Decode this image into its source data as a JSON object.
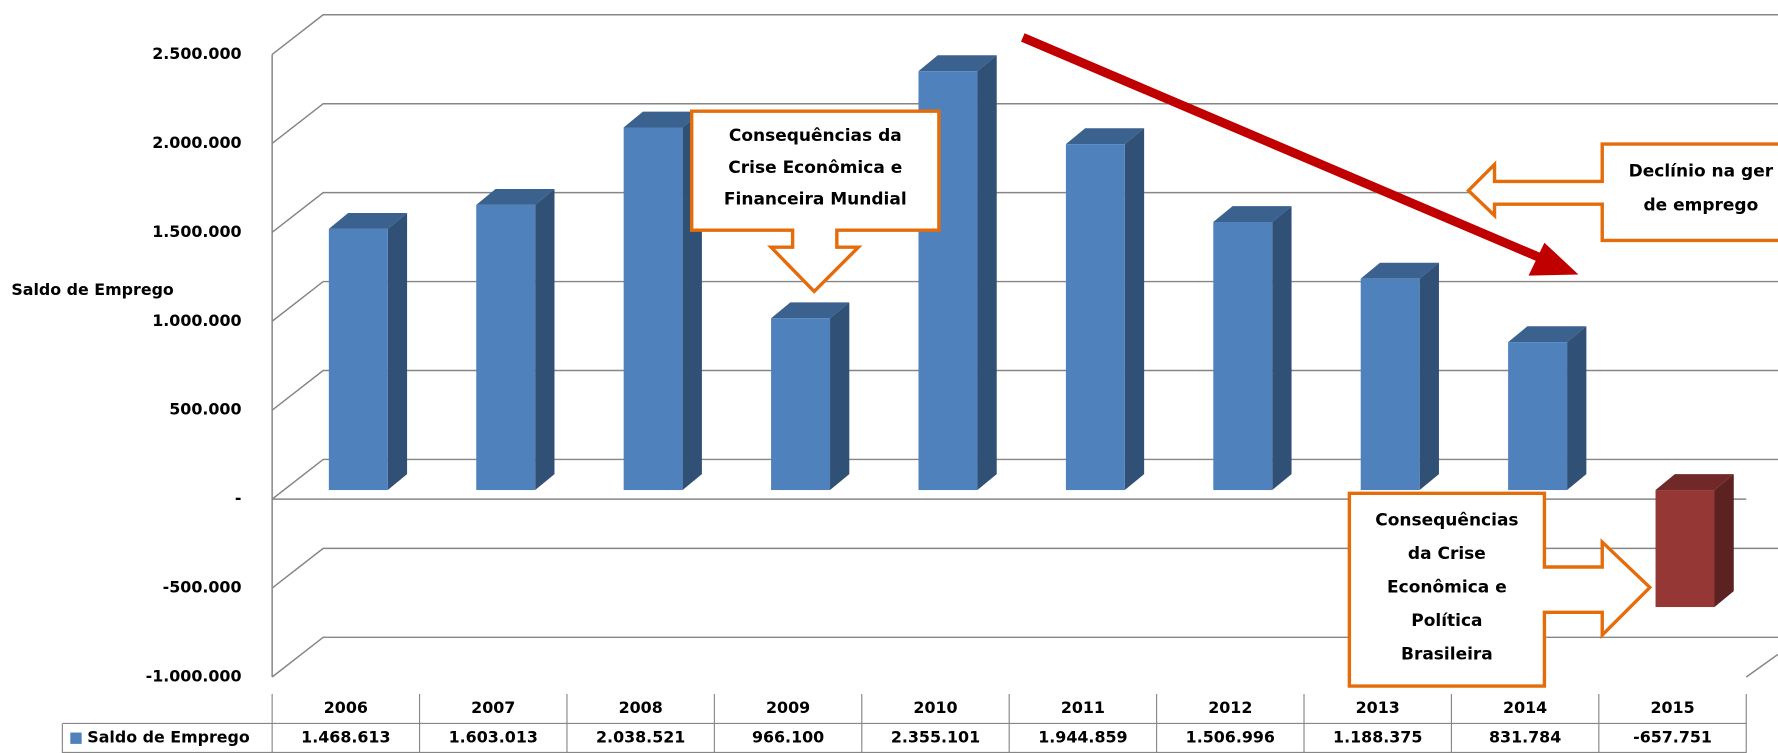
{
  "chart_data": {
    "type": "bar",
    "y_axis_label": "Saldo de Emprego",
    "categories": [
      "2006",
      "2007",
      "2008",
      "2009",
      "2010",
      "2011",
      "2012",
      "2013",
      "2014",
      "2015"
    ],
    "series": [
      {
        "name": "Saldo de Emprego",
        "color": "#4f81bd",
        "negative_color": "#953735",
        "values": [
          1468613,
          1603013,
          2038521,
          966100,
          2355101,
          1944859,
          1506996,
          1188375,
          831784,
          -657751
        ],
        "value_labels": [
          "1.468.613",
          "1.603.013",
          "2.038.521",
          "966.100",
          "2.355.101",
          "1.944.859",
          "1.506.996",
          "1.188.375",
          "831.784",
          "-657.751"
        ]
      }
    ],
    "ylim": [
      -1000000,
      2500000
    ],
    "yticks": [
      {
        "value": -1000000,
        "label": "-1.000.000"
      },
      {
        "value": -500000,
        "label": "-500.000"
      },
      {
        "value": 0,
        "label": "-"
      },
      {
        "value": 500000,
        "label": "500.000"
      },
      {
        "value": 1000000,
        "label": "1.000.000"
      },
      {
        "value": 1500000,
        "label": "1.500.000"
      },
      {
        "value": 2000000,
        "label": "2.000.000"
      },
      {
        "value": 2500000,
        "label": "2.500.000"
      }
    ],
    "grid": true,
    "data_table": true,
    "annotations": [
      {
        "lines": [
          "Consequências da",
          "Crise Econômica e",
          "Financeira Mundial"
        ]
      },
      {
        "lines": [
          "Declínio na ger",
          "de emprego"
        ]
      },
      {
        "lines": [
          "Consequências",
          "da Crise",
          "Econômica e",
          "Política",
          "Brasileira"
        ]
      }
    ]
  }
}
